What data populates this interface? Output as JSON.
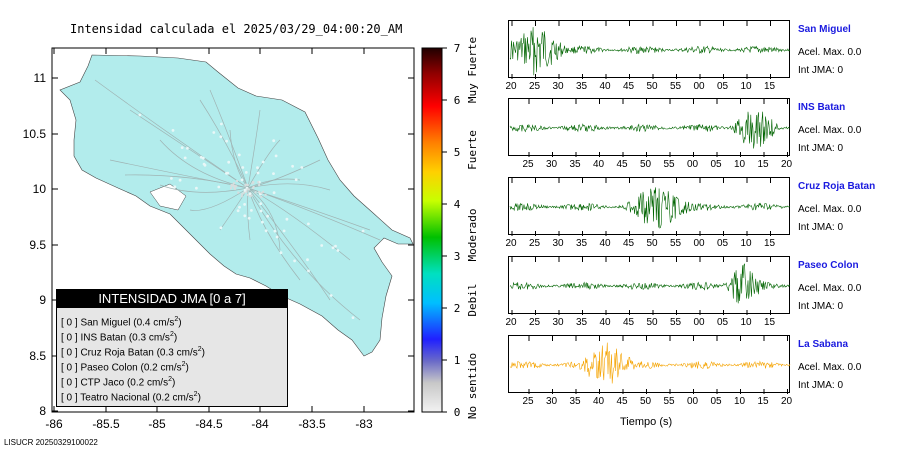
{
  "map": {
    "title": "Intensidad calculada el 2025/03/29_04:00:20_AM",
    "lat_ticks": [
      "11",
      "10.5",
      "10",
      "9.5",
      "9",
      "8.5",
      "8"
    ],
    "lon_ticks": [
      "-86",
      "-85.5",
      "-85",
      "-84.5",
      "-84",
      "-83.5",
      "-83"
    ],
    "land_color": "#b2ecec"
  },
  "colorbar": {
    "values": [
      "0",
      "1",
      "2",
      "3",
      "4",
      "5",
      "6",
      "7"
    ],
    "categories": [
      "No sentido",
      "Debil",
      "Moderado",
      "Fuerte",
      "Muy Fuerte"
    ]
  },
  "legend": {
    "title": "INTENSIDAD JMA [0 a 7]",
    "unit_base": "cm/s",
    "unit_exp": "2",
    "entries": [
      {
        "intensity": "[ 0 ]",
        "station": "San Miguel",
        "accel": "0.4"
      },
      {
        "intensity": "[ 0 ]",
        "station": "INS Batan",
        "accel": "0.3"
      },
      {
        "intensity": "[ 0 ]",
        "station": "Cruz Roja Batan",
        "accel": "0.3"
      },
      {
        "intensity": "[ 0 ]",
        "station": "Paseo Colon",
        "accel": "0.2"
      },
      {
        "intensity": "[ 0 ]",
        "station": "CTP Jaco",
        "accel": "0.2"
      },
      {
        "intensity": "[ 0 ]",
        "station": "Teatro Nacional",
        "accel": "0.2"
      }
    ]
  },
  "footer_id": "LISUCR 20250329100022",
  "traces": [
    {
      "name": "San Miguel",
      "accel": "Acel. Max. 0.0",
      "jma": "Int JMA: 0",
      "color": "#006400",
      "ticks": [
        "20",
        "25",
        "30",
        "35",
        "40",
        "45",
        "50",
        "55",
        "00",
        "05",
        "10",
        "15"
      ]
    },
    {
      "name": "INS Batan",
      "accel": "Acel. Max. 0.0",
      "jma": "Int JMA: 0",
      "color": "#006400",
      "ticks": [
        "25",
        "30",
        "35",
        "40",
        "45",
        "50",
        "55",
        "00",
        "05",
        "10",
        "15",
        "20"
      ]
    },
    {
      "name": "Cruz Roja Batan",
      "accel": "Acel. Max. 0.0",
      "jma": "Int JMA: 0",
      "color": "#006400",
      "ticks": [
        "20",
        "25",
        "30",
        "35",
        "40",
        "45",
        "50",
        "55",
        "00",
        "05",
        "10",
        "15"
      ]
    },
    {
      "name": "Paseo Colon",
      "accel": "Acel. Max. 0.0",
      "jma": "Int JMA: 0",
      "color": "#006400",
      "ticks": [
        "20",
        "25",
        "30",
        "35",
        "40",
        "45",
        "50",
        "55",
        "00",
        "05",
        "10",
        "15"
      ]
    },
    {
      "name": "La Sabana",
      "accel": "Acel. Max. 0.0",
      "jma": "Int JMA: 0",
      "color": "#f5a300",
      "ticks": [
        "25",
        "30",
        "35",
        "40",
        "45",
        "50",
        "55",
        "00",
        "05",
        "10",
        "15",
        "20"
      ]
    }
  ],
  "time_axis_label": "Tiempo (s)"
}
